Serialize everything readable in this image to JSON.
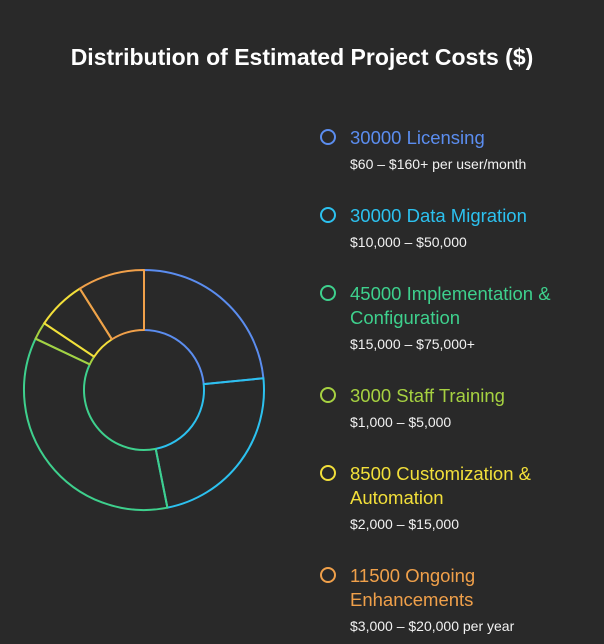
{
  "title": "Distribution of Estimated Project Costs ($)",
  "chart_data": {
    "type": "donut",
    "title": "Distribution of Estimated Project Costs ($)",
    "series": [
      {
        "name": "Licensing",
        "value": 30000,
        "label": "30000 Licensing",
        "description": "$60 – $160+ per user/month",
        "color": "#5b8def"
      },
      {
        "name": "Data Migration",
        "value": 30000,
        "label": "30000 Data Migration",
        "description": "$10,000 – $50,000",
        "color": "#2cc1ef"
      },
      {
        "name": "Implementation & Configuration",
        "value": 45000,
        "label": "45000 Implementation & Configuration",
        "description": "$15,000 – $75,000+",
        "color": "#3ed08d"
      },
      {
        "name": "Staff Training",
        "value": 3000,
        "label": "3000 Staff Training",
        "description": "$1,000 – $5,000",
        "color": "#a6d141"
      },
      {
        "name": "Customization & Automation",
        "value": 8500,
        "label": "8500 Customization & Automation",
        "description": "$2,000 – $15,000",
        "color": "#f2df3a"
      },
      {
        "name": "Ongoing Enhancements",
        "value": 11500,
        "label": "11500 Ongoing Enhancements",
        "description": "$3,000 – $20,000 per year",
        "color": "#f0a04a"
      }
    ]
  }
}
